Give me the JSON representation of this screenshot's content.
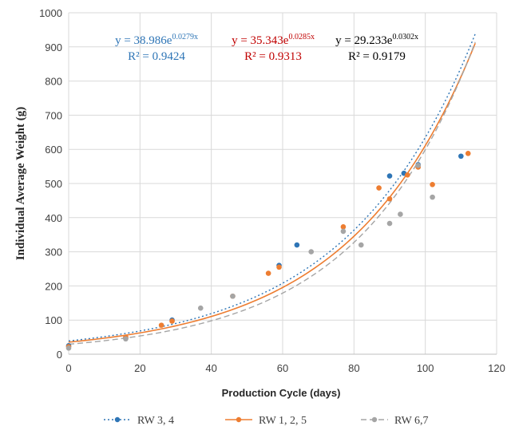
{
  "chart_data": {
    "type": "scatter",
    "title": "",
    "xlabel": "Production Cycle (days)",
    "ylabel": "Individual Average Weight (g)",
    "xlim": [
      0,
      120
    ],
    "ylim": [
      0,
      1000
    ],
    "xticks": [
      "0",
      "20",
      "40",
      "60",
      "80",
      "100",
      "120"
    ],
    "yticks": [
      "0",
      "100",
      "200",
      "300",
      "400",
      "500",
      "600",
      "700",
      "800",
      "900",
      "1000"
    ],
    "grid": true,
    "legend_position": "bottom",
    "series": [
      {
        "name": "RW 3, 4",
        "color": "#2e75b6",
        "trend_style": "dotted",
        "trendline": {
          "a": 38.986,
          "b": 0.0279
        },
        "equation_base": "y = 38.986e",
        "equation_exp": "0.0279x",
        "r2": "R² = 0.9424",
        "points": [
          [
            0,
            25
          ],
          [
            16,
            47
          ],
          [
            29,
            100
          ],
          [
            59,
            260
          ],
          [
            64,
            320
          ],
          [
            90,
            522
          ],
          [
            94,
            530
          ],
          [
            98,
            555
          ],
          [
            110,
            580
          ]
        ]
      },
      {
        "name": "RW 1, 2, 5",
        "color": "#ed7d31",
        "trend_style": "solid",
        "trendline": {
          "a": 35.343,
          "b": 0.0285
        },
        "equation_base": "y = 35.343e",
        "equation_exp": "0.0285x",
        "r2": "R² = 0.9313",
        "points": [
          [
            0,
            22
          ],
          [
            16,
            50
          ],
          [
            26,
            85
          ],
          [
            29,
            97
          ],
          [
            46,
            170
          ],
          [
            56,
            237
          ],
          [
            59,
            255
          ],
          [
            77,
            373
          ],
          [
            87,
            487
          ],
          [
            90,
            455
          ],
          [
            95,
            525
          ],
          [
            98,
            548
          ],
          [
            102,
            497
          ],
          [
            112,
            588
          ]
        ]
      },
      {
        "name": "RW 6,7",
        "color": "#a5a5a5",
        "trend_style": "dashed",
        "trendline": {
          "a": 29.233,
          "b": 0.0302
        },
        "equation_base": "y = 29.233e",
        "equation_exp": "0.0302x",
        "r2": "R² = 0.9179",
        "points": [
          [
            0,
            18
          ],
          [
            16,
            45
          ],
          [
            37,
            135
          ],
          [
            46,
            170
          ],
          [
            68,
            300
          ],
          [
            77,
            360
          ],
          [
            82,
            320
          ],
          [
            90,
            383
          ],
          [
            93,
            410
          ],
          [
            98,
            553
          ],
          [
            102,
            460
          ]
        ]
      }
    ],
    "annotation_colors": [
      "#2e75b6",
      "#c00000",
      "#000000"
    ]
  }
}
